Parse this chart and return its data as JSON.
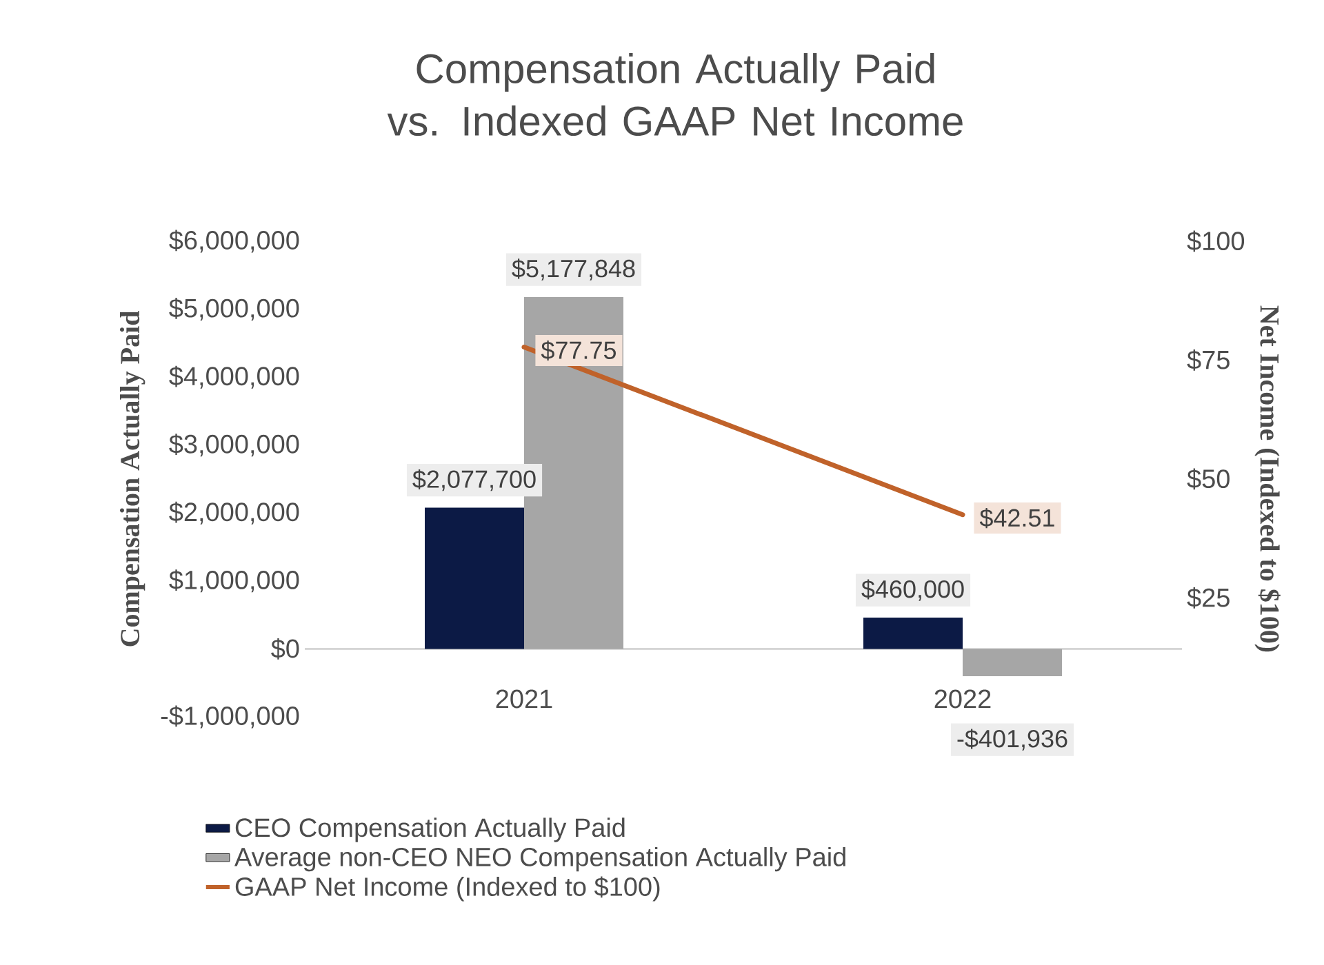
{
  "chart_data": {
    "type": "bar",
    "title": "Compensation Actually Paid vs. Indexed GAAP Net Income",
    "ylabel": "Compensation Actually Paid",
    "y2label": "Net Income (Indexed to $100)",
    "categories": [
      "2021",
      "2022"
    ],
    "series": [
      {
        "name": "CEO Compensation Actually Paid",
        "color": "#0c1a45",
        "values": [
          2077700,
          460000
        ],
        "value_labels": [
          "$2,077,700",
          "$460,000"
        ]
      },
      {
        "name": "Average non-CEO NEO Compensation Actually Paid",
        "color": "#a6a6a6",
        "values": [
          5177848,
          -401936
        ],
        "value_labels": [
          "$5,177,848",
          "-$401,936"
        ]
      },
      {
        "name": "GAAP Net Income (Indexed to $100)",
        "type": "line",
        "axis": "y2",
        "color": "#c0622a",
        "values": [
          77.75,
          42.51
        ],
        "value_labels": [
          "$77.75",
          "$42.51"
        ]
      }
    ],
    "ylim": [
      -1000000,
      6000000
    ],
    "yticks": [
      {
        "value": -1000000,
        "label": "-$1,000,000"
      },
      {
        "value": 0,
        "label": "$0"
      },
      {
        "value": 1000000,
        "label": "$1,000,000"
      },
      {
        "value": 2000000,
        "label": "$2,000,000"
      },
      {
        "value": 3000000,
        "label": "$3,000,000"
      },
      {
        "value": 4000000,
        "label": "$4,000,000"
      },
      {
        "value": 5000000,
        "label": "$5,000,000"
      },
      {
        "value": 6000000,
        "label": "$6,000,000"
      }
    ],
    "y2lim": [
      0,
      100
    ],
    "y2ticks": [
      {
        "value": 25,
        "label": "$25"
      },
      {
        "value": 50,
        "label": "$50"
      },
      {
        "value": 75,
        "label": "$75"
      },
      {
        "value": 100,
        "label": "$100"
      }
    ],
    "grid": false,
    "legend": "bottom",
    "marker": "none",
    "line_style": "solid"
  }
}
